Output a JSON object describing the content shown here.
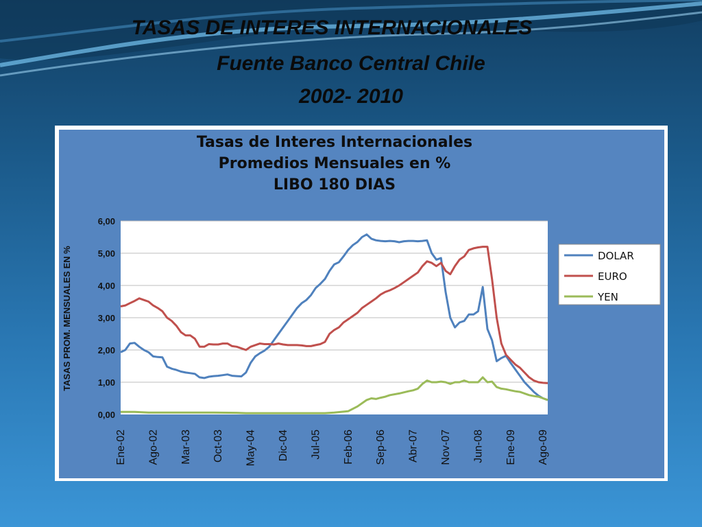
{
  "slide": {
    "title_line_1": "TASAS DE INTERES INTERNACIONALES",
    "title_line_2": "Fuente Banco Central Chile",
    "title_line_3": "2002- 2010"
  },
  "colors": {
    "DOLAR": "#4f81bd",
    "EURO": "#c0504d",
    "YEN": "#9bbb59",
    "chart_background": "#5585c0",
    "plot_background": "#ffffff",
    "gridline": "#bdbdbd"
  },
  "chart_data": {
    "type": "line",
    "title": [
      "Tasas de Interes Internacionales",
      "Promedios Mensuales en %",
      "LIBO 180 DIAS"
    ],
    "xlabel": "",
    "ylabel": "TASAS PROM. MENSUALES EN %",
    "ylim": [
      0,
      6
    ],
    "yticks": [
      "0,00",
      "1,00",
      "2,00",
      "3,00",
      "4,00",
      "5,00",
      "6,00"
    ],
    "categories": [
      "Ene-02",
      "Ago-02",
      "Mar-03",
      "Oct-03",
      "May-04",
      "Dic-04",
      "Jul-05",
      "Feb-06",
      "Sep-06",
      "Abr-07",
      "Nov-07",
      "Jun-08",
      "Ene-09",
      "Ago-09"
    ],
    "x_start": "2002-01",
    "grid": true,
    "legend_position": "right",
    "series": [
      {
        "name": "DOLAR",
        "points": [
          [
            0,
            1.93
          ],
          [
            1,
            2.0
          ],
          [
            2,
            2.2
          ],
          [
            3,
            2.22
          ],
          [
            4,
            2.1
          ],
          [
            5,
            2.0
          ],
          [
            6,
            1.93
          ],
          [
            7,
            1.8
          ],
          [
            8,
            1.78
          ],
          [
            9,
            1.77
          ],
          [
            10,
            1.48
          ],
          [
            11,
            1.42
          ],
          [
            12,
            1.38
          ],
          [
            13,
            1.33
          ],
          [
            14,
            1.3
          ],
          [
            15,
            1.28
          ],
          [
            16,
            1.26
          ],
          [
            17,
            1.15
          ],
          [
            18,
            1.13
          ],
          [
            19,
            1.17
          ],
          [
            20,
            1.19
          ],
          [
            21,
            1.2
          ],
          [
            22,
            1.22
          ],
          [
            23,
            1.24
          ],
          [
            24,
            1.2
          ],
          [
            25,
            1.19
          ],
          [
            26,
            1.18
          ],
          [
            27,
            1.3
          ],
          [
            28,
            1.6
          ],
          [
            29,
            1.8
          ],
          [
            30,
            1.9
          ],
          [
            31,
            1.98
          ],
          [
            32,
            2.1
          ],
          [
            33,
            2.3
          ],
          [
            34,
            2.5
          ],
          [
            35,
            2.7
          ],
          [
            36,
            2.9
          ],
          [
            37,
            3.1
          ],
          [
            38,
            3.3
          ],
          [
            39,
            3.45
          ],
          [
            40,
            3.55
          ],
          [
            41,
            3.7
          ],
          [
            42,
            3.92
          ],
          [
            43,
            4.05
          ],
          [
            44,
            4.2
          ],
          [
            45,
            4.45
          ],
          [
            46,
            4.65
          ],
          [
            47,
            4.72
          ],
          [
            48,
            4.9
          ],
          [
            49,
            5.1
          ],
          [
            50,
            5.25
          ],
          [
            51,
            5.35
          ],
          [
            52,
            5.5
          ],
          [
            53,
            5.58
          ],
          [
            54,
            5.45
          ],
          [
            55,
            5.4
          ],
          [
            56,
            5.38
          ],
          [
            57,
            5.37
          ],
          [
            58,
            5.38
          ],
          [
            59,
            5.37
          ],
          [
            60,
            5.34
          ],
          [
            61,
            5.37
          ],
          [
            62,
            5.38
          ],
          [
            63,
            5.38
          ],
          [
            64,
            5.37
          ],
          [
            65,
            5.38
          ],
          [
            66,
            5.4
          ],
          [
            67,
            5.0
          ],
          [
            68,
            4.8
          ],
          [
            69,
            4.85
          ],
          [
            70,
            3.8
          ],
          [
            71,
            3.0
          ],
          [
            72,
            2.7
          ],
          [
            73,
            2.85
          ],
          [
            74,
            2.9
          ],
          [
            75,
            3.1
          ],
          [
            76,
            3.1
          ],
          [
            77,
            3.2
          ],
          [
            78,
            3.95
          ],
          [
            79,
            2.65
          ],
          [
            80,
            2.3
          ],
          [
            81,
            1.65
          ],
          [
            82,
            1.75
          ],
          [
            83,
            1.82
          ],
          [
            84,
            1.6
          ],
          [
            85,
            1.4
          ],
          [
            86,
            1.2
          ],
          [
            87,
            1.0
          ],
          [
            88,
            0.85
          ],
          [
            89,
            0.7
          ],
          [
            90,
            0.58
          ],
          [
            91,
            0.5
          ],
          [
            92,
            0.45
          ]
        ]
      },
      {
        "name": "EURO",
        "points": [
          [
            0,
            3.35
          ],
          [
            1,
            3.38
          ],
          [
            2,
            3.45
          ],
          [
            3,
            3.52
          ],
          [
            4,
            3.6
          ],
          [
            5,
            3.55
          ],
          [
            6,
            3.5
          ],
          [
            7,
            3.38
          ],
          [
            8,
            3.3
          ],
          [
            9,
            3.2
          ],
          [
            10,
            3.0
          ],
          [
            11,
            2.9
          ],
          [
            12,
            2.75
          ],
          [
            13,
            2.55
          ],
          [
            14,
            2.45
          ],
          [
            15,
            2.45
          ],
          [
            16,
            2.35
          ],
          [
            17,
            2.1
          ],
          [
            18,
            2.1
          ],
          [
            19,
            2.18
          ],
          [
            20,
            2.17
          ],
          [
            21,
            2.17
          ],
          [
            22,
            2.2
          ],
          [
            23,
            2.2
          ],
          [
            24,
            2.12
          ],
          [
            25,
            2.1
          ],
          [
            26,
            2.05
          ],
          [
            27,
            2.0
          ],
          [
            28,
            2.1
          ],
          [
            29,
            2.15
          ],
          [
            30,
            2.2
          ],
          [
            31,
            2.18
          ],
          [
            32,
            2.18
          ],
          [
            33,
            2.17
          ],
          [
            34,
            2.2
          ],
          [
            35,
            2.17
          ],
          [
            36,
            2.15
          ],
          [
            37,
            2.15
          ],
          [
            38,
            2.15
          ],
          [
            39,
            2.14
          ],
          [
            40,
            2.12
          ],
          [
            41,
            2.12
          ],
          [
            42,
            2.15
          ],
          [
            43,
            2.18
          ],
          [
            44,
            2.25
          ],
          [
            45,
            2.5
          ],
          [
            46,
            2.62
          ],
          [
            47,
            2.7
          ],
          [
            48,
            2.85
          ],
          [
            49,
            2.95
          ],
          [
            50,
            3.05
          ],
          [
            51,
            3.15
          ],
          [
            52,
            3.3
          ],
          [
            53,
            3.4
          ],
          [
            54,
            3.5
          ],
          [
            55,
            3.6
          ],
          [
            56,
            3.72
          ],
          [
            57,
            3.8
          ],
          [
            58,
            3.85
          ],
          [
            59,
            3.92
          ],
          [
            60,
            4.0
          ],
          [
            61,
            4.1
          ],
          [
            62,
            4.2
          ],
          [
            63,
            4.3
          ],
          [
            64,
            4.4
          ],
          [
            65,
            4.6
          ],
          [
            66,
            4.75
          ],
          [
            67,
            4.7
          ],
          [
            68,
            4.6
          ],
          [
            69,
            4.7
          ],
          [
            70,
            4.45
          ],
          [
            71,
            4.35
          ],
          [
            72,
            4.6
          ],
          [
            73,
            4.8
          ],
          [
            74,
            4.9
          ],
          [
            75,
            5.1
          ],
          [
            76,
            5.15
          ],
          [
            77,
            5.18
          ],
          [
            78,
            5.2
          ],
          [
            79,
            5.2
          ],
          [
            80,
            4.2
          ],
          [
            81,
            3.0
          ],
          [
            82,
            2.2
          ],
          [
            83,
            1.85
          ],
          [
            84,
            1.7
          ],
          [
            85,
            1.55
          ],
          [
            86,
            1.45
          ],
          [
            87,
            1.3
          ],
          [
            88,
            1.15
          ],
          [
            89,
            1.05
          ],
          [
            90,
            1.0
          ],
          [
            91,
            0.98
          ],
          [
            92,
            0.97
          ]
        ]
      },
      {
        "name": "YEN",
        "points": [
          [
            0,
            0.08
          ],
          [
            3,
            0.08
          ],
          [
            6,
            0.06
          ],
          [
            20,
            0.06
          ],
          [
            25,
            0.05
          ],
          [
            27,
            0.04
          ],
          [
            44,
            0.04
          ],
          [
            46,
            0.06
          ],
          [
            49,
            0.1
          ],
          [
            51,
            0.25
          ],
          [
            53,
            0.45
          ],
          [
            54,
            0.5
          ],
          [
            55,
            0.48
          ],
          [
            56,
            0.52
          ],
          [
            57,
            0.55
          ],
          [
            58,
            0.6
          ],
          [
            60,
            0.65
          ],
          [
            62,
            0.72
          ],
          [
            63,
            0.75
          ],
          [
            64,
            0.8
          ],
          [
            65,
            0.95
          ],
          [
            66,
            1.05
          ],
          [
            67,
            1.0
          ],
          [
            68,
            1.0
          ],
          [
            69,
            1.02
          ],
          [
            70,
            1.0
          ],
          [
            71,
            0.95
          ],
          [
            72,
            1.0
          ],
          [
            73,
            1.0
          ],
          [
            74,
            1.05
          ],
          [
            75,
            1.0
          ],
          [
            76,
            1.0
          ],
          [
            77,
            1.0
          ],
          [
            78,
            1.15
          ],
          [
            79,
            1.0
          ],
          [
            80,
            1.02
          ],
          [
            81,
            0.85
          ],
          [
            82,
            0.8
          ],
          [
            83,
            0.78
          ],
          [
            84,
            0.75
          ],
          [
            85,
            0.72
          ],
          [
            86,
            0.7
          ],
          [
            87,
            0.65
          ],
          [
            88,
            0.6
          ],
          [
            89,
            0.57
          ],
          [
            90,
            0.55
          ],
          [
            91,
            0.5
          ],
          [
            92,
            0.45
          ]
        ]
      }
    ]
  }
}
